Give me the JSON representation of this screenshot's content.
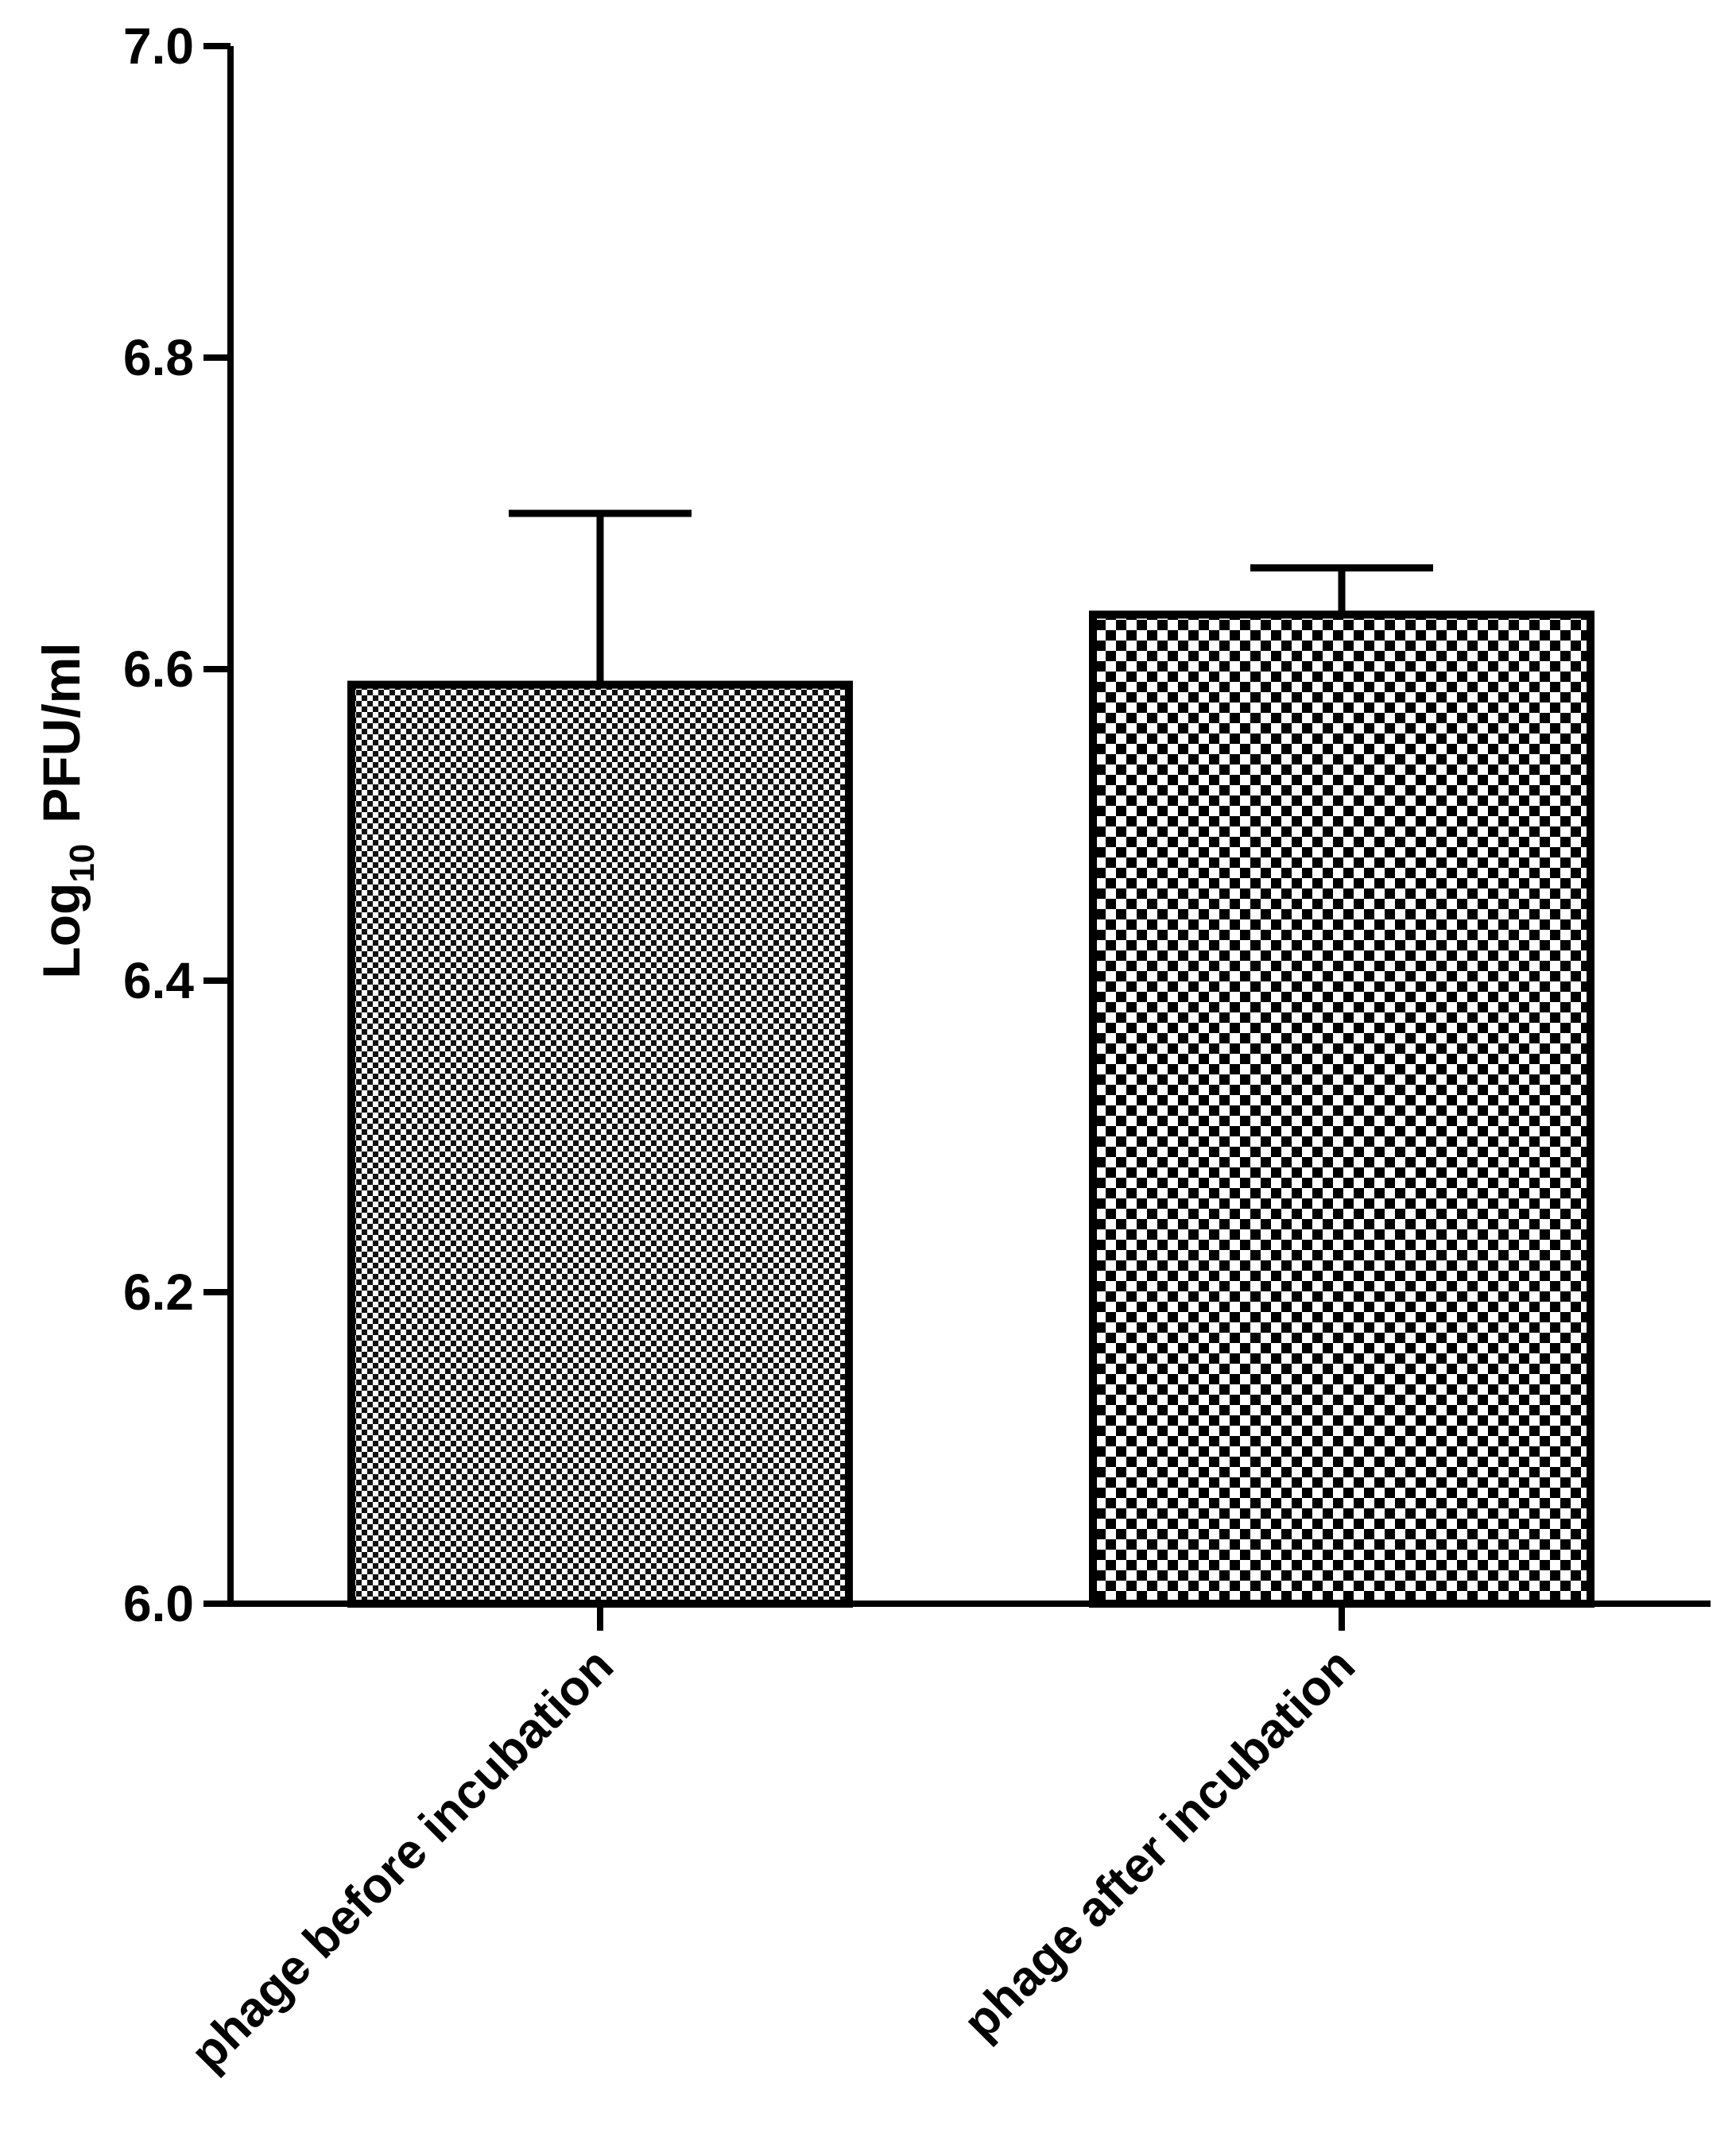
{
  "chart_data": {
    "type": "bar",
    "title": "",
    "xlabel": "",
    "ylabel": {
      "prefix": "Log",
      "subscript": "10",
      "suffix": "PFU/ml"
    },
    "categories": [
      "phage before incubation",
      "phage after incubation"
    ],
    "values": [
      6.59,
      6.635
    ],
    "error_plus": [
      0.11,
      0.03
    ],
    "ylim": [
      6.0,
      7.0
    ],
    "yticks": [
      "6.0",
      "6.2",
      "6.4",
      "6.6",
      "6.8",
      "7.0"
    ],
    "bar_patterns": [
      "fine-checker",
      "coarse-checker"
    ],
    "grid": false,
    "legend": "none"
  }
}
